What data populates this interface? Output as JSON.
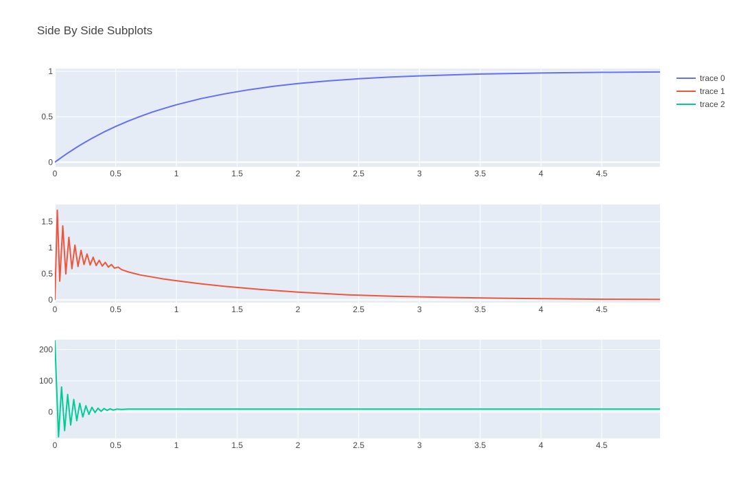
{
  "title": "Side By Side Subplots",
  "chart_data": [
    {
      "type": "line",
      "x_range": [
        0,
        4.98
      ],
      "y_range": [
        -0.05,
        1.03
      ],
      "x_ticks": [
        0,
        0.5,
        1,
        1.5,
        2,
        2.5,
        3,
        3.5,
        4,
        4.5
      ],
      "x_tick_labels": [
        "0",
        "0.5",
        "1",
        "1.5",
        "2",
        "2.5",
        "3",
        "3.5",
        "4",
        "4.5"
      ],
      "y_ticks": [
        0,
        0.5,
        1
      ],
      "y_tick_labels": [
        "0",
        "0.5",
        "1"
      ],
      "series": [
        {
          "name": "trace 0",
          "color": "#636efa",
          "x": [
            0,
            0.05,
            0.1,
            0.15,
            0.2,
            0.3,
            0.4,
            0.5,
            0.6,
            0.7,
            0.8,
            0.9,
            1.0,
            1.2,
            1.4,
            1.6,
            1.8,
            2.0,
            2.25,
            2.5,
            2.75,
            3.0,
            3.5,
            4.0,
            4.5,
            4.98
          ],
          "y": [
            0.0,
            0.049,
            0.095,
            0.139,
            0.181,
            0.259,
            0.33,
            0.393,
            0.451,
            0.503,
            0.551,
            0.593,
            0.632,
            0.699,
            0.753,
            0.798,
            0.835,
            0.865,
            0.895,
            0.918,
            0.936,
            0.95,
            0.97,
            0.982,
            0.989,
            0.993
          ]
        }
      ]
    },
    {
      "type": "line",
      "x_range": [
        0,
        4.98
      ],
      "y_range": [
        -0.05,
        1.83
      ],
      "x_ticks": [
        0,
        0.5,
        1,
        1.5,
        2,
        2.5,
        3,
        3.5,
        4,
        4.5
      ],
      "x_tick_labels": [
        "0",
        "0.5",
        "1",
        "1.5",
        "2",
        "2.5",
        "3",
        "3.5",
        "4",
        "4.5"
      ],
      "y_ticks": [
        0,
        0.5,
        1,
        1.5
      ],
      "y_tick_labels": [
        "0",
        "0.5",
        "1",
        "1.5"
      ],
      "series": [
        {
          "name": "trace 1",
          "color": "#ef553b",
          "x": [
            0,
            0.02,
            0.04,
            0.065,
            0.09,
            0.115,
            0.14,
            0.165,
            0.19,
            0.215,
            0.24,
            0.265,
            0.29,
            0.315,
            0.34,
            0.365,
            0.39,
            0.415,
            0.44,
            0.465,
            0.49,
            0.52,
            0.55,
            0.6,
            0.7,
            0.8,
            0.9,
            1.0,
            1.2,
            1.4,
            1.7,
            2.0,
            2.4,
            2.8,
            3.2,
            3.6,
            4.0,
            4.5,
            4.98
          ],
          "y": [
            0.0,
            1.72,
            0.36,
            1.42,
            0.5,
            1.2,
            0.6,
            1.05,
            0.64,
            0.95,
            0.68,
            0.88,
            0.67,
            0.82,
            0.66,
            0.76,
            0.65,
            0.72,
            0.63,
            0.68,
            0.61,
            0.63,
            0.58,
            0.54,
            0.48,
            0.44,
            0.4,
            0.37,
            0.31,
            0.26,
            0.2,
            0.15,
            0.1,
            0.07,
            0.05,
            0.035,
            0.025,
            0.015,
            0.01
          ]
        }
      ]
    },
    {
      "type": "line",
      "x_range": [
        0,
        4.98
      ],
      "y_range": [
        -85,
        232
      ],
      "x_ticks": [
        0,
        0.5,
        1,
        1.5,
        2,
        2.5,
        3,
        3.5,
        4,
        4.5
      ],
      "x_tick_labels": [
        "0",
        "0.5",
        "1",
        "1.5",
        "2",
        "2.5",
        "3",
        "3.5",
        "4",
        "4.5"
      ],
      "y_ticks": [
        0,
        100,
        200
      ],
      "y_tick_labels": [
        "0",
        "100",
        "200"
      ],
      "series": [
        {
          "name": "trace 2",
          "color": "#00cc96",
          "x": [
            0,
            0.01,
            0.03,
            0.055,
            0.08,
            0.105,
            0.13,
            0.155,
            0.18,
            0.205,
            0.23,
            0.255,
            0.28,
            0.305,
            0.33,
            0.355,
            0.38,
            0.405,
            0.43,
            0.455,
            0.48,
            0.51,
            0.55,
            0.6,
            0.7,
            1.0,
            2.0,
            3.0,
            4.0,
            4.98
          ],
          "y": [
            230,
            120,
            -80,
            80,
            -60,
            56,
            -42,
            40,
            -28,
            28,
            -16,
            20,
            -8,
            15,
            -2,
            12,
            2,
            11,
            5,
            10,
            6,
            9,
            8,
            9,
            9,
            9,
            9,
            9,
            9,
            9
          ]
        }
      ]
    }
  ],
  "legend": {
    "placement": "top-right",
    "items": [
      {
        "label": "trace 0",
        "color": "#636efa"
      },
      {
        "label": "trace 1",
        "color": "#ef553b"
      },
      {
        "label": "trace 2",
        "color": "#00cc96"
      }
    ]
  }
}
